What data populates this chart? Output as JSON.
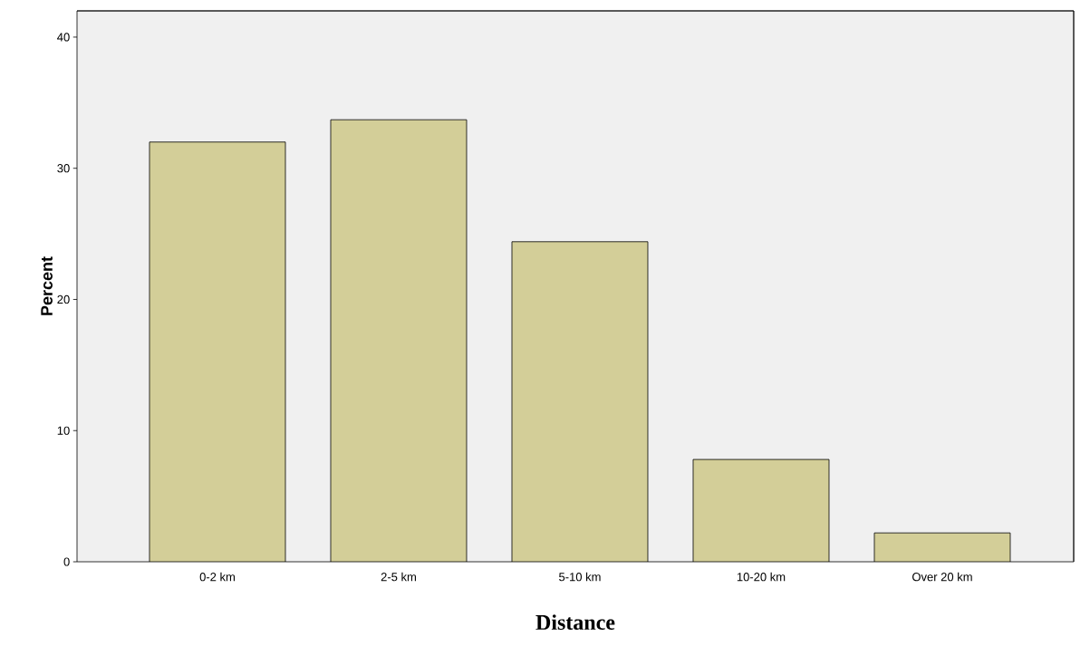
{
  "chart_data": {
    "type": "bar",
    "xlabel": "Distance",
    "ylabel": "Percent",
    "categories": [
      "0-2 km",
      "2-5 km",
      "5-10 km",
      "10-20 km",
      "Over 20 km"
    ],
    "values": [
      32.0,
      33.7,
      24.4,
      7.8,
      2.2
    ],
    "color": "#d3ce98",
    "ylim": [
      0,
      42
    ],
    "yticks": [
      0,
      10,
      20,
      30,
      40
    ],
    "grid": false
  }
}
